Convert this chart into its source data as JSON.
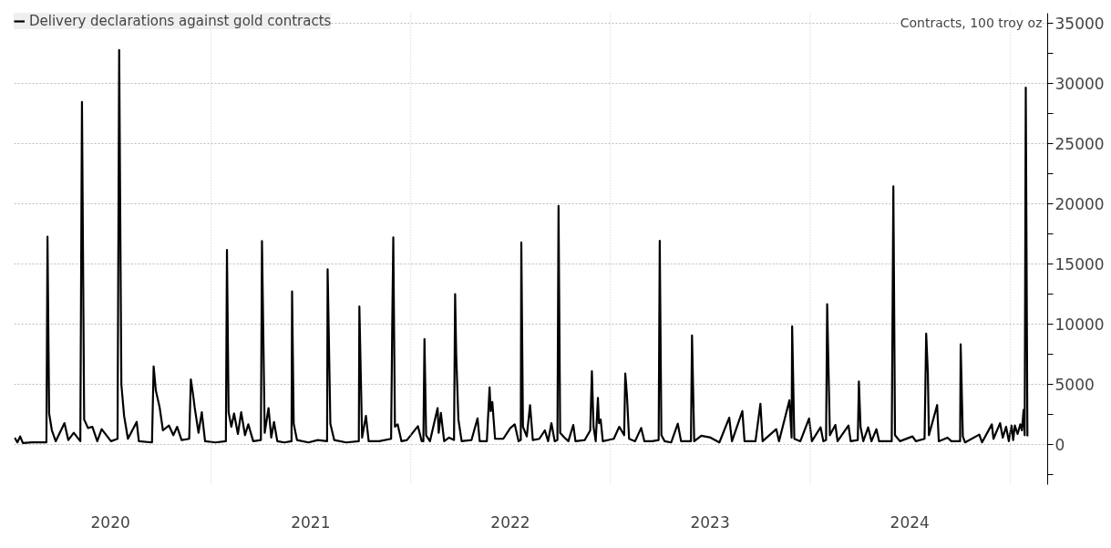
{
  "chart_data": {
    "type": "line",
    "ylabel": "Contracts, 100 troy oz",
    "x": [
      "2020-01-08",
      "2020-01-13",
      "2020-01-18",
      "2020-01-23",
      "2020-02-09",
      "2020-03-06",
      "2020-03-08",
      "2020-03-11",
      "2020-03-16",
      "2020-03-23",
      "2020-04-08",
      "2020-04-15",
      "2020-04-25",
      "2020-05-07",
      "2020-05-10",
      "2020-05-14",
      "2020-05-21",
      "2020-05-29",
      "2020-06-07",
      "2020-06-15",
      "2020-07-02",
      "2020-07-14",
      "2020-07-17",
      "2020-07-21",
      "2020-07-26",
      "2020-08-02",
      "2020-08-18",
      "2020-08-22",
      "2020-09-15",
      "2020-09-18",
      "2020-09-22",
      "2020-09-29",
      "2020-10-05",
      "2020-10-16",
      "2020-10-24",
      "2020-10-31",
      "2020-11-08",
      "2020-11-22",
      "2020-11-25",
      "2020-11-29",
      "2020-12-02",
      "2020-12-09",
      "2020-12-15",
      "2020-12-21",
      "2021-01-09",
      "2021-01-28",
      "2021-01-30",
      "2021-02-02",
      "2021-02-07",
      "2021-02-12",
      "2021-02-19",
      "2021-02-25",
      "2021-03-04",
      "2021-03-10",
      "2021-03-19",
      "2021-04-02",
      "2021-04-04",
      "2021-04-09",
      "2021-04-16",
      "2021-04-21",
      "2021-04-26",
      "2021-05-02",
      "2021-05-15",
      "2021-05-28",
      "2021-05-29",
      "2021-06-01",
      "2021-06-07",
      "2021-06-28",
      "2021-07-15",
      "2021-08-01",
      "2021-08-02",
      "2021-08-07",
      "2021-08-14",
      "2021-09-05",
      "2021-09-28",
      "2021-09-29",
      "2021-10-04",
      "2021-10-11",
      "2021-10-16",
      "2021-11-04",
      "2021-11-26",
      "2021-11-28",
      "2021-11-30",
      "2021-12-03",
      "2021-12-08",
      "2021-12-15",
      "2021-12-25",
      "2022-01-14",
      "2022-01-21",
      "2022-01-24",
      "2022-01-26",
      "2022-01-29",
      "2022-02-05",
      "2022-02-19",
      "2022-02-21",
      "2022-02-25",
      "2022-03-03",
      "2022-03-12",
      "2022-03-21",
      "2022-03-23",
      "2022-03-25",
      "2022-03-29",
      "2022-04-04",
      "2022-04-22",
      "2022-05-03",
      "2022-05-07",
      "2022-05-20",
      "2022-05-25",
      "2022-05-27",
      "2022-05-30",
      "2022-06-04",
      "2022-06-19",
      "2022-07-02",
      "2022-07-10",
      "2022-07-17",
      "2022-07-21",
      "2022-07-22",
      "2022-07-25",
      "2022-08-01",
      "2022-08-07",
      "2022-08-12",
      "2022-08-24",
      "2022-09-03",
      "2022-09-09",
      "2022-09-15",
      "2022-09-21",
      "2022-09-26",
      "2022-09-28",
      "2022-10-01",
      "2022-10-09",
      "2022-10-16",
      "2022-10-25",
      "2022-10-29",
      "2022-11-15",
      "2022-11-25",
      "2022-11-28",
      "2022-12-01",
      "2022-12-05",
      "2022-12-09",
      "2022-12-11",
      "2022-12-14",
      "2022-12-18",
      "2023-01-07",
      "2023-01-17",
      "2023-01-26",
      "2023-01-28",
      "2023-01-31",
      "2023-02-04",
      "2023-02-15",
      "2023-02-26",
      "2023-03-04",
      "2023-03-18",
      "2023-03-30",
      "2023-04-01",
      "2023-04-04",
      "2023-04-10",
      "2023-04-22",
      "2023-05-04",
      "2023-05-10",
      "2023-05-28",
      "2023-05-30",
      "2023-06-03",
      "2023-06-16",
      "2023-07-03",
      "2023-07-19",
      "2023-08-06",
      "2023-08-11",
      "2023-08-30",
      "2023-09-03",
      "2023-09-23",
      "2023-10-02",
      "2023-10-06",
      "2023-10-31",
      "2023-11-05",
      "2023-11-24",
      "2023-11-28",
      "2023-11-29",
      "2023-12-03",
      "2023-12-14",
      "2023-12-30",
      "2024-01-04",
      "2024-01-20",
      "2024-01-25",
      "2024-01-30",
      "2024-02-01",
      "2024-02-06",
      "2024-02-16",
      "2024-02-20",
      "2024-03-11",
      "2024-03-15",
      "2024-03-28",
      "2024-03-30",
      "2024-04-02",
      "2024-04-07",
      "2024-04-16",
      "2024-04-22",
      "2024-05-01",
      "2024-05-06",
      "2024-05-29",
      "2024-06-01",
      "2024-06-04",
      "2024-06-13",
      "2024-07-06",
      "2024-07-12",
      "2024-07-28",
      "2024-07-31",
      "2024-08-03",
      "2024-08-05",
      "2024-08-20",
      "2024-08-23",
      "2024-09-08",
      "2024-09-15",
      "2024-10-01",
      "2024-10-02",
      "2024-10-06",
      "2024-10-10",
      "2024-11-05",
      "2024-11-10",
      "2024-11-28",
      "2024-12-01",
      "2024-12-13",
      "2024-12-18",
      "2024-12-24",
      "2024-12-29",
      "2025-01-03",
      "2025-01-06",
      "2025-01-09",
      "2025-01-14",
      "2025-01-19",
      "2025-01-22",
      "2025-01-25",
      "2025-01-27",
      "2025-01-29",
      "2025-02-01"
    ],
    "series": [
      {
        "name": "Delivery declarations against gold contracts",
        "color": "#000000",
        "values": [
          600,
          200,
          700,
          150,
          200,
          200,
          17260,
          2600,
          1200,
          300,
          1800,
          400,
          1000,
          300,
          28430,
          2100,
          1400,
          1500,
          300,
          1300,
          300,
          500,
          32740,
          5000,
          2400,
          500,
          1900,
          300,
          200,
          6510,
          4500,
          3100,
          1200,
          1600,
          800,
          1500,
          400,
          500,
          5430,
          4200,
          3100,
          1000,
          2700,
          300,
          200,
          300,
          16160,
          2700,
          1500,
          2600,
          900,
          2700,
          800,
          1700,
          300,
          400,
          16900,
          1000,
          3050,
          600,
          1900,
          300,
          200,
          300,
          12730,
          1750,
          400,
          200,
          400,
          300,
          14560,
          1750,
          400,
          200,
          300,
          11470,
          600,
          2400,
          300,
          300,
          500,
          9630,
          17200,
          1500,
          1700,
          300,
          400,
          1550,
          300,
          300,
          8770,
          800,
          300,
          3050,
          1000,
          2650,
          300,
          600,
          400,
          12500,
          7500,
          2100,
          300,
          400,
          2200,
          300,
          300,
          4760,
          2800,
          3550,
          500,
          500,
          1400,
          1700,
          300,
          400,
          16800,
          1500,
          700,
          3300,
          400,
          500,
          1200,
          300,
          1800,
          300,
          400,
          19820,
          1000,
          600,
          300,
          1650,
          300,
          400,
          1200,
          6100,
          1500,
          300,
          3900,
          1800,
          2100,
          300,
          500,
          1500,
          800,
          5920,
          4150,
          500,
          300,
          1400,
          300,
          300,
          400,
          16920,
          800,
          300,
          200,
          1750,
          300,
          300,
          9070,
          300,
          750,
          600,
          200,
          2250,
          300,
          2800,
          300,
          300,
          3400,
          300,
          1300,
          300,
          3700,
          600,
          9830,
          500,
          300,
          2200,
          300,
          1450,
          300,
          400,
          11660,
          800,
          1650,
          300,
          1600,
          300,
          400,
          5250,
          1500,
          300,
          1450,
          300,
          1300,
          300,
          300,
          21440,
          800,
          300,
          700,
          300,
          500,
          9220,
          6000,
          800,
          3300,
          300,
          600,
          300,
          300,
          8330,
          700,
          200,
          850,
          200,
          1700,
          500,
          1800,
          600,
          1500,
          300,
          1600,
          400,
          1600,
          900,
          1700,
          1200,
          2900,
          800,
          29630,
          700
        ]
      }
    ],
    "xlim": [
      "2020-01-07",
      "2025-03-10"
    ],
    "xticks": [
      {
        "value": "2020-07-01",
        "label": "2020"
      },
      {
        "value": "2021-01-01",
        "label": null
      },
      {
        "value": "2021-07-02",
        "label": "2021"
      },
      {
        "value": "2022-01-01",
        "label": null
      },
      {
        "value": "2022-07-02",
        "label": "2022"
      },
      {
        "value": "2023-01-01",
        "label": null
      },
      {
        "value": "2023-07-02",
        "label": "2023"
      },
      {
        "value": "2024-01-01",
        "label": null
      },
      {
        "value": "2024-07-01",
        "label": "2024"
      },
      {
        "value": "2025-01-01",
        "label": null
      }
    ],
    "ylim": [
      -3300,
      35800
    ],
    "yticks": [
      {
        "value": -2500,
        "label": null
      },
      0,
      {
        "value": 2500,
        "label": null
      },
      5000,
      {
        "value": 7500,
        "label": null
      },
      10000,
      {
        "value": 12500,
        "label": null
      },
      15000,
      {
        "value": 17500,
        "label": null
      },
      20000,
      {
        "value": 22500,
        "label": null
      },
      25000,
      {
        "value": 27500,
        "label": null
      },
      30000,
      {
        "value": 32500,
        "label": null
      },
      35000
    ],
    "grid": true,
    "legend": "top left",
    "marker": "none",
    "line_style": "solid"
  }
}
